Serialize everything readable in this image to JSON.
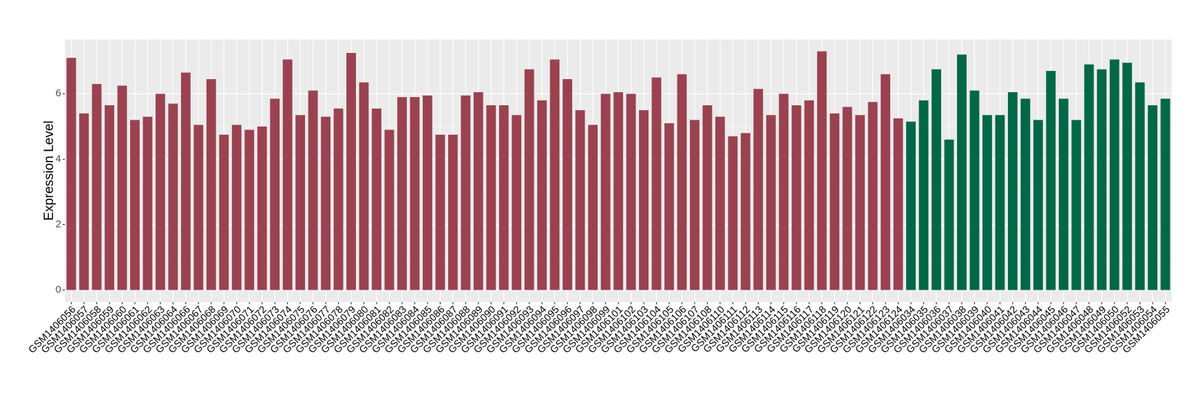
{
  "chart_data": {
    "type": "bar",
    "y_label": "Expression Level",
    "categories": [
      "GSM1406056",
      "GSM1406057",
      "GSM1406058",
      "GSM1406059",
      "GSM1406060",
      "GSM1406061",
      "GSM1406062",
      "GSM1406063",
      "GSM1406064",
      "GSM1406066",
      "GSM1406067",
      "GSM1406068",
      "GSM1406069",
      "GSM1406070",
      "GSM1406071",
      "GSM1406072",
      "GSM1406073",
      "GSM1406074",
      "GSM1406075",
      "GSM1406076",
      "GSM1406077",
      "GSM1406078",
      "GSM1406079",
      "GSM1406080",
      "GSM1406081",
      "GSM1406082",
      "GSM1406083",
      "GSM1406084",
      "GSM1406085",
      "GSM1406086",
      "GSM1406087",
      "GSM1406088",
      "GSM1406089",
      "GSM1406090",
      "GSM1406091",
      "GSM1406092",
      "GSM1406093",
      "GSM1406094",
      "GSM1406095",
      "GSM1406096",
      "GSM1406097",
      "GSM1406098",
      "GSM1406099",
      "GSM1406101",
      "GSM1406102",
      "GSM1406103",
      "GSM1406104",
      "GSM1406105",
      "GSM1406106",
      "GSM1406107",
      "GSM1406108",
      "GSM1406110",
      "GSM1406111",
      "GSM1406112",
      "GSM1406113",
      "GSM1406114",
      "GSM1406115",
      "GSM1406116",
      "GSM1406117",
      "GSM1406118",
      "GSM1406119",
      "GSM1406120",
      "GSM1406121",
      "GSM1406122",
      "GSM1406123",
      "GSM1406124",
      "GSM1406034",
      "GSM1406035",
      "GSM1406036",
      "GSM1406037",
      "GSM1406038",
      "GSM1406039",
      "GSM1406040",
      "GSM1406041",
      "GSM1406042",
      "GSM1406043",
      "GSM1406044",
      "GSM1406045",
      "GSM1406046",
      "GSM1406047",
      "GSM1406048",
      "GSM1406049",
      "GSM1406050",
      "GSM1406052",
      "GSM1406053",
      "GSM1406054",
      "GSM1406055"
    ],
    "values": [
      7.1,
      5.4,
      6.3,
      5.65,
      6.25,
      5.2,
      5.3,
      6.0,
      5.7,
      6.65,
      5.05,
      6.45,
      4.75,
      5.05,
      4.9,
      5.0,
      5.85,
      7.05,
      5.35,
      6.1,
      5.3,
      5.55,
      7.25,
      6.35,
      5.55,
      4.9,
      5.9,
      5.9,
      5.95,
      4.75,
      4.75,
      5.95,
      6.05,
      5.65,
      5.65,
      5.35,
      6.75,
      5.8,
      7.05,
      6.45,
      5.5,
      5.05,
      6.0,
      6.05,
      6.0,
      5.5,
      6.5,
      5.1,
      6.6,
      5.2,
      5.65,
      5.3,
      4.7,
      4.8,
      6.15,
      5.35,
      6.0,
      5.65,
      5.8,
      7.3,
      5.4,
      5.6,
      5.35,
      5.75,
      6.6,
      5.25,
      5.15,
      5.8,
      6.75,
      4.6,
      7.2,
      6.1,
      5.35,
      5.35,
      6.05,
      5.85,
      5.2,
      6.7,
      5.85,
      5.2,
      6.9,
      6.75,
      7.05,
      6.95,
      6.35,
      5.65,
      5.85
    ],
    "colors": [
      "#9a4250",
      "#9a4250",
      "#9a4250",
      "#9a4250",
      "#9a4250",
      "#9a4250",
      "#9a4250",
      "#9a4250",
      "#9a4250",
      "#9a4250",
      "#9a4250",
      "#9a4250",
      "#9a4250",
      "#9a4250",
      "#9a4250",
      "#9a4250",
      "#9a4250",
      "#9a4250",
      "#9a4250",
      "#9a4250",
      "#9a4250",
      "#9a4250",
      "#9a4250",
      "#9a4250",
      "#9a4250",
      "#9a4250",
      "#9a4250",
      "#9a4250",
      "#9a4250",
      "#9a4250",
      "#9a4250",
      "#9a4250",
      "#9a4250",
      "#9a4250",
      "#9a4250",
      "#9a4250",
      "#9a4250",
      "#9a4250",
      "#9a4250",
      "#9a4250",
      "#9a4250",
      "#9a4250",
      "#9a4250",
      "#9a4250",
      "#9a4250",
      "#9a4250",
      "#9a4250",
      "#9a4250",
      "#9a4250",
      "#9a4250",
      "#9a4250",
      "#9a4250",
      "#9a4250",
      "#9a4250",
      "#9a4250",
      "#9a4250",
      "#9a4250",
      "#9a4250",
      "#9a4250",
      "#9a4250",
      "#9a4250",
      "#9a4250",
      "#9a4250",
      "#9a4250",
      "#9a4250",
      "#9a4250",
      "#006846",
      "#006846",
      "#006846",
      "#006846",
      "#006846",
      "#006846",
      "#006846",
      "#006846",
      "#006846",
      "#006846",
      "#006846",
      "#006846",
      "#006846",
      "#006846",
      "#006846",
      "#006846",
      "#006846",
      "#006846",
      "#006846",
      "#006846",
      "#006846"
    ],
    "ylim": [
      -0.365,
      7.665
    ],
    "yticks": [
      0,
      2,
      4,
      6
    ],
    "grid": true
  }
}
